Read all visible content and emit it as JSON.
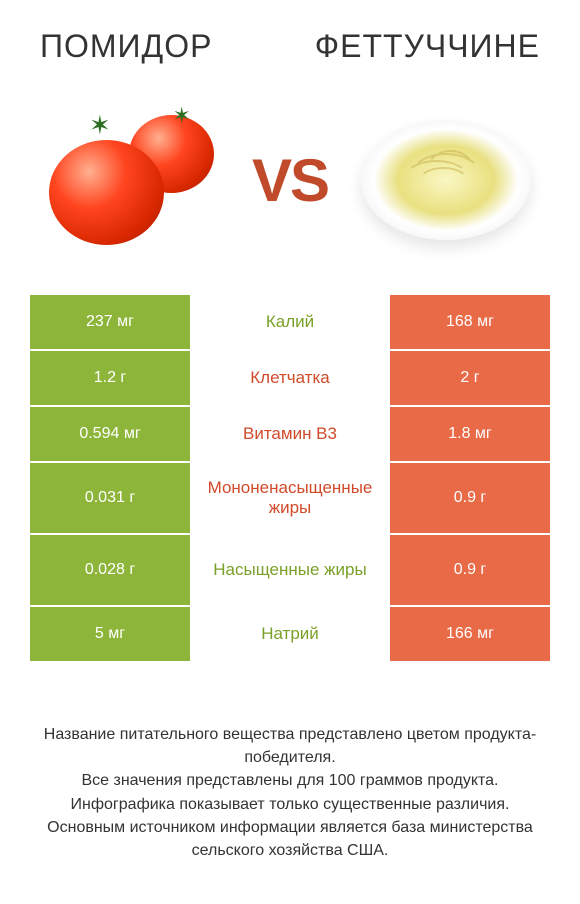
{
  "colors": {
    "left": "#8db53a",
    "right": "#e86a47",
    "mid_left_text": "#7aa028",
    "mid_right_text": "#d04a2a",
    "vs": "#c04a2a",
    "title": "#333333",
    "footer": "#333333",
    "background": "#ffffff"
  },
  "typography": {
    "title_fontsize": 32,
    "vs_fontsize": 60,
    "cell_fontsize": 16,
    "mid_fontsize": 17,
    "footer_fontsize": 16
  },
  "header": {
    "left": "ПОМИДОР",
    "right": "ФЕТТУЧЧИНЕ"
  },
  "vs": "VS",
  "rows": [
    {
      "left": "237 мг",
      "mid": "Калий",
      "right": "168 мг",
      "winner": "left",
      "tall": false
    },
    {
      "left": "1.2 г",
      "mid": "Клетчатка",
      "right": "2 г",
      "winner": "right",
      "tall": false
    },
    {
      "left": "0.594 мг",
      "mid": "Витамин B3",
      "right": "1.8 мг",
      "winner": "right",
      "tall": false
    },
    {
      "left": "0.031 г",
      "mid": "Мононенасыщенные жиры",
      "right": "0.9 г",
      "winner": "right",
      "tall": true
    },
    {
      "left": "0.028 г",
      "mid": "Насыщенные жиры",
      "right": "0.9 г",
      "winner": "left",
      "tall": true
    },
    {
      "left": "5 мг",
      "mid": "Натрий",
      "right": "166 мг",
      "winner": "left",
      "tall": false
    }
  ],
  "footer": {
    "l1": "Название питательного вещества представлено цветом продукта-победителя.",
    "l2": "Все значения представлены для 100 граммов продукта.",
    "l3": "Инфографика показывает только существенные различия.",
    "l4": "Основным источником информации является база министерства сельского хозяйства США."
  }
}
